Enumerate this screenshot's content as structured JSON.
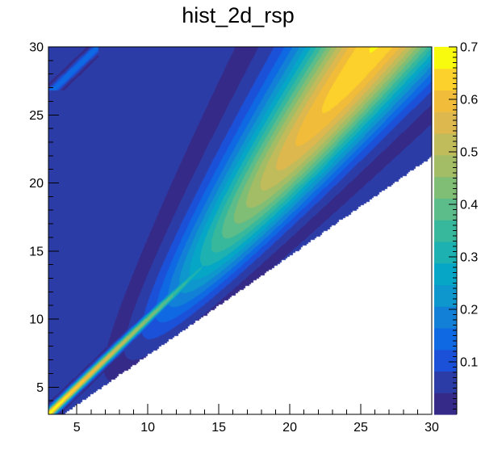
{
  "chart_data": {
    "type": "heatmap",
    "title": "hist_2d_rsp",
    "xlabel": "",
    "ylabel": "",
    "xlim": [
      3,
      30
    ],
    "ylim": [
      3,
      30
    ],
    "zlim": [
      0,
      0.7
    ],
    "x_ticks": [
      "5",
      "10",
      "15",
      "20",
      "25",
      "30"
    ],
    "y_ticks": [
      "5",
      "10",
      "15",
      "20",
      "25",
      "30"
    ],
    "z_ticks": [
      "0.1",
      "0.2",
      "0.3",
      "0.4",
      "0.5",
      "0.6",
      "0.7"
    ],
    "colormap": "parula",
    "colors": {
      "background": "#2c3ca7",
      "empty": "#ffffff",
      "palette": [
        "#352a87",
        "#2c3ca7",
        "#1b51d9",
        "#0f69e3",
        "#1180d6",
        "#0d97cc",
        "#06a7c6",
        "#1eb1b1",
        "#37b89d",
        "#5cbc8a",
        "#80bd75",
        "#a2bd66",
        "#c0bb5b",
        "#dcb84f",
        "#f1bc3a",
        "#fcd12b",
        "#f9fb0e"
      ]
    },
    "features": [
      {
        "name": "diagonal-ridge",
        "description": "narrow high-response band along y = x, peak ~0.7 at low x"
      },
      {
        "name": "broad-lobe",
        "description": "wide response region above the diagonal, peak ~0.65 near x = 22, y = 25"
      },
      {
        "name": "lower-cutoff",
        "description": "no entries below roughly y = 0.73 * x"
      },
      {
        "name": "secondary-band",
        "description": "faint band near x = 3-6, y = 27-30"
      }
    ]
  }
}
